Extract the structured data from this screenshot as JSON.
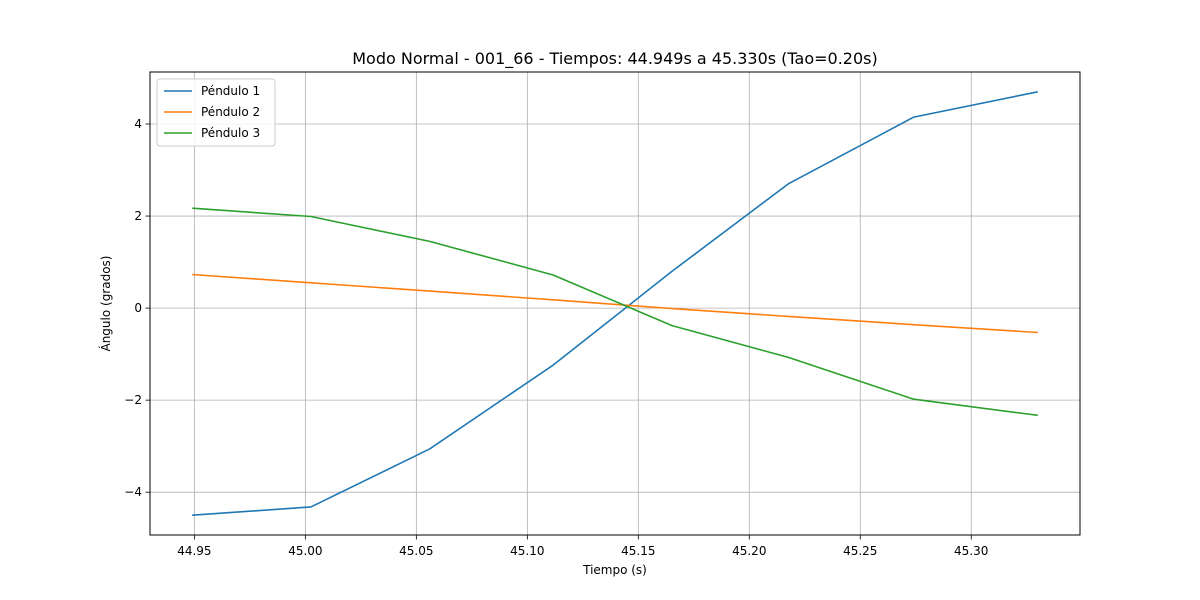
{
  "chart_data": {
    "type": "line",
    "title": "Modo Normal - 001_66 - Tiempos: 44.949s a 45.330s (Tao=0.20s)",
    "xlabel": "Tiempo (s)",
    "ylabel": "Ángulo (grados)",
    "xlim": [
      44.93,
      45.349
    ],
    "ylim": [
      -4.93,
      5.13
    ],
    "xticks": [
      44.95,
      45.0,
      45.05,
      45.1,
      45.15,
      45.2,
      45.25,
      45.3
    ],
    "xtick_labels": [
      "44.95",
      "45.00",
      "45.05",
      "45.10",
      "45.15",
      "45.20",
      "45.25",
      "45.30"
    ],
    "yticks": [
      -4,
      -2,
      0,
      2,
      4
    ],
    "ytick_labels": [
      "−4",
      "−2",
      "0",
      "2",
      "4"
    ],
    "grid": true,
    "legend_position": "top-left",
    "x": [
      44.949,
      45.0025,
      45.056,
      45.1116,
      45.1652,
      45.2176,
      45.2741,
      45.33
    ],
    "series": [
      {
        "name": "Péndulo 1",
        "color": "#1f77b4",
        "values": [
          -4.5,
          -4.32,
          -3.06,
          -1.24,
          0.8,
          2.7,
          4.15,
          4.7
        ]
      },
      {
        "name": "Péndulo 2",
        "color": "#ff7f0e",
        "values": [
          0.73,
          0.55,
          0.37,
          0.18,
          -0.01,
          -0.18,
          -0.36,
          -0.53
        ]
      },
      {
        "name": "Péndulo 3",
        "color": "#2ca02c",
        "values": [
          2.17,
          1.99,
          1.45,
          0.72,
          -0.38,
          -1.07,
          -1.98,
          -2.33
        ]
      }
    ]
  }
}
